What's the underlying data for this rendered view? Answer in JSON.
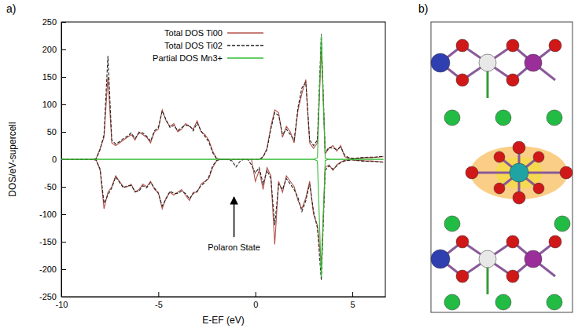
{
  "chart_data": {
    "type": "line",
    "panel": "a)",
    "x_label": "E-EF (eV)",
    "y_label": "DOS/eV-supercell",
    "xlim": [
      -10,
      6.7
    ],
    "xticks": [
      -10,
      -5,
      0,
      5
    ],
    "ylim": [
      -250,
      250
    ],
    "yticks": [
      -250,
      -200,
      -150,
      -100,
      -50,
      0,
      50,
      100,
      150,
      200,
      250
    ],
    "grid": false,
    "legend": "top",
    "annotations": [
      {
        "text": "Polaron State",
        "x": -1.1,
        "y": -63
      }
    ],
    "x": [
      -10,
      -9.8,
      -9.6,
      -9.4,
      -9.2,
      -9,
      -8.8,
      -8.6,
      -8.4,
      -8.2,
      -8,
      -7.8,
      -7.6,
      -7.4,
      -7.2,
      -7,
      -6.8,
      -6.6,
      -6.4,
      -6.2,
      -6,
      -5.8,
      -5.6,
      -5.4,
      -5.2,
      -5,
      -4.8,
      -4.6,
      -4.4,
      -4.2,
      -4,
      -3.8,
      -3.6,
      -3.4,
      -3.2,
      -3,
      -2.8,
      -2.6,
      -2.4,
      -2.2,
      -2,
      -1.8,
      -1.6,
      -1.4,
      -1.2,
      -1,
      -0.8,
      -0.6,
      -0.4,
      -0.2,
      0,
      0.2,
      0.4,
      0.6,
      0.8,
      1,
      1.2,
      1.4,
      1.6,
      1.8,
      2,
      2.2,
      2.4,
      2.6,
      2.8,
      3,
      3.2,
      3.4,
      3.6,
      3.8,
      4,
      4.2,
      4.4,
      4.6,
      4.8,
      5,
      5.2,
      5.4,
      5.6,
      5.8,
      6,
      6.2,
      6.4,
      6.6
    ],
    "series": [
      {
        "name": "Total DOS Ti00",
        "color": "#b5524a",
        "line_style": "solid",
        "values": [
          0,
          0,
          0,
          0,
          0,
          0,
          0,
          0,
          0,
          2,
          20,
          40,
          150,
          30,
          25,
          30,
          35,
          40,
          45,
          35,
          50,
          45,
          40,
          30,
          50,
          55,
          90,
          70,
          60,
          65,
          50,
          55,
          65,
          60,
          55,
          70,
          50,
          45,
          35,
          15,
          2,
          0,
          0,
          0,
          0,
          0,
          0,
          0,
          0,
          0,
          0,
          0,
          5,
          20,
          60,
          90,
          85,
          40,
          60,
          50,
          30,
          90,
          120,
          145,
          30,
          20,
          30,
          200,
          10,
          20,
          25,
          15,
          25,
          5,
          2,
          1,
          2,
          2,
          3,
          3,
          3,
          4,
          4,
          5
        ],
        "values_down": [
          0,
          0,
          0,
          0,
          0,
          0,
          0,
          0,
          0,
          -2,
          -20,
          -90,
          -60,
          -50,
          -30,
          -40,
          -50,
          -50,
          -45,
          -60,
          -55,
          -45,
          -50,
          -40,
          -55,
          -60,
          -90,
          -70,
          -60,
          -65,
          -60,
          -55,
          -65,
          -75,
          -60,
          -60,
          -45,
          -40,
          -35,
          -15,
          -3,
          0,
          0,
          0,
          0,
          0,
          0,
          0,
          0,
          0,
          -40,
          -20,
          -55,
          -15,
          -30,
          -155,
          -40,
          -60,
          -30,
          -40,
          -50,
          -75,
          -90,
          -70,
          -40,
          -100,
          -120,
          -190,
          -15,
          -10,
          -20,
          -10,
          -5,
          -2,
          -1,
          -1,
          -2,
          -2,
          -3,
          -3,
          -3,
          -4,
          -4,
          -5
        ]
      },
      {
        "name": "Total DOS Ti02",
        "color": "#222222",
        "line_style": "dashed",
        "values": [
          0,
          0,
          0,
          0,
          0,
          0,
          0,
          0,
          0,
          1,
          18,
          45,
          188,
          35,
          28,
          32,
          38,
          42,
          48,
          38,
          48,
          48,
          42,
          33,
          52,
          58,
          88,
          72,
          58,
          62,
          52,
          58,
          62,
          62,
          52,
          66,
          52,
          42,
          32,
          12,
          1,
          0,
          0,
          0,
          0,
          0,
          0,
          0,
          0,
          0,
          0,
          0,
          4,
          18,
          55,
          85,
          80,
          45,
          55,
          45,
          35,
          95,
          130,
          140,
          35,
          25,
          35,
          228,
          12,
          22,
          20,
          18,
          22,
          8,
          3,
          2,
          2,
          3,
          3,
          4,
          4,
          4,
          5,
          5
        ],
        "values_down": [
          0,
          0,
          0,
          0,
          0,
          0,
          0,
          0,
          0,
          -1,
          -18,
          -80,
          -65,
          -52,
          -32,
          -42,
          -52,
          -48,
          -48,
          -58,
          -58,
          -48,
          -52,
          -42,
          -52,
          -62,
          -85,
          -72,
          -58,
          -62,
          -62,
          -58,
          -62,
          -72,
          -62,
          -58,
          -48,
          -42,
          -32,
          -12,
          -2,
          0,
          0,
          0,
          -3,
          -14,
          -4,
          0,
          0,
          -10,
          -25,
          -15,
          -45,
          -20,
          -35,
          -120,
          -45,
          -55,
          -35,
          -45,
          -55,
          -70,
          -95,
          -75,
          -45,
          -95,
          -125,
          -220,
          -20,
          -12,
          -18,
          -12,
          -6,
          -3,
          -2,
          -1,
          -2,
          -3,
          -3,
          -4,
          -4,
          -4,
          -5,
          -5
        ]
      },
      {
        "name": "Partial DOS Mn3+",
        "color": "#33bb33",
        "line_style": "solid",
        "values": [
          0,
          0,
          0,
          0,
          0,
          0,
          0,
          0,
          0,
          0,
          0,
          0,
          0,
          0,
          0,
          0,
          0,
          0,
          0,
          0,
          0,
          0,
          0,
          0,
          0,
          0,
          0,
          0,
          0,
          0,
          0,
          0,
          0,
          0,
          0,
          0,
          0,
          0,
          0,
          0,
          0,
          0,
          0,
          0,
          0,
          0,
          0,
          0,
          0,
          0,
          0,
          0,
          0,
          0,
          0,
          0,
          0,
          0,
          0,
          0,
          0,
          0,
          0,
          0,
          0,
          0,
          3,
          225,
          2,
          0,
          0,
          0,
          0,
          0,
          0,
          0,
          0,
          0,
          0,
          0,
          0,
          0,
          0,
          0
        ],
        "values_down": [
          0,
          0,
          0,
          0,
          0,
          0,
          0,
          0,
          0,
          0,
          0,
          0,
          0,
          0,
          0,
          0,
          0,
          0,
          0,
          0,
          0,
          0,
          0,
          0,
          0,
          0,
          0,
          0,
          0,
          0,
          0,
          0,
          0,
          0,
          0,
          0,
          0,
          0,
          0,
          0,
          0,
          0,
          0,
          0,
          0,
          0,
          0,
          0,
          0,
          0,
          0,
          0,
          0,
          0,
          0,
          0,
          0,
          0,
          0,
          0,
          0,
          0,
          0,
          0,
          0,
          0,
          -3,
          -215,
          -2,
          0,
          0,
          0,
          0,
          0,
          0,
          0,
          0,
          0,
          0,
          0,
          0,
          0,
          0,
          0
        ]
      }
    ]
  },
  "structure_panel": {
    "label": "b)"
  }
}
